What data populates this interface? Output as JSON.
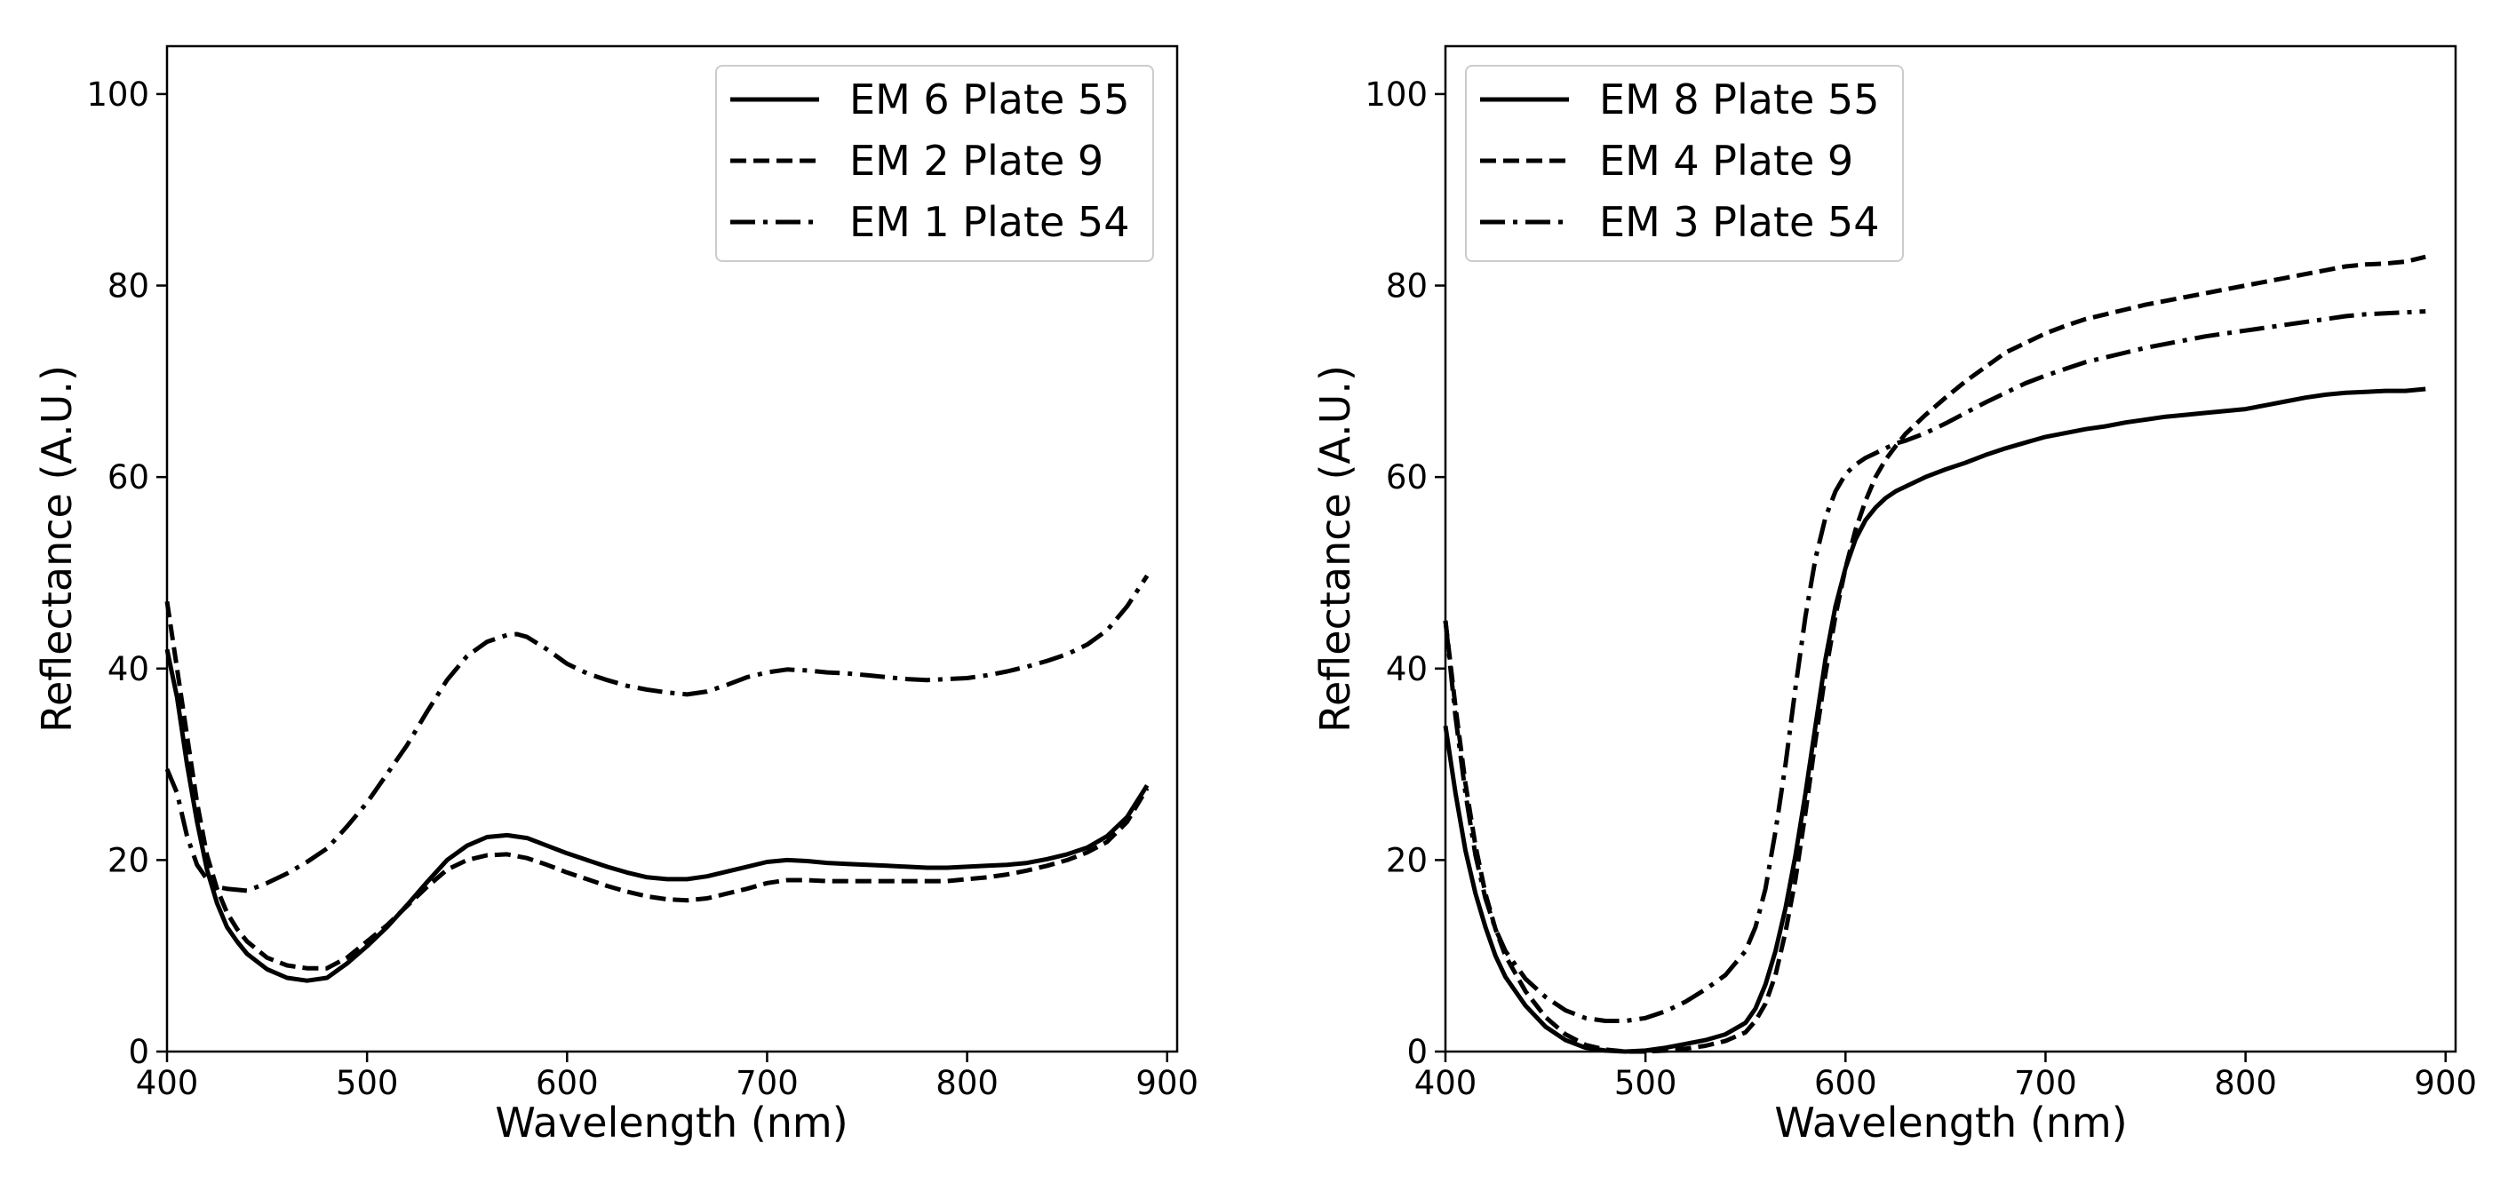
{
  "chart_data": [
    {
      "type": "line",
      "title": "",
      "xlabel": "Wavelength (nm)",
      "ylabel": "Reflectance (A.U.)",
      "xlim": [
        400,
        905
      ],
      "ylim": [
        0,
        105
      ],
      "xticks": [
        400,
        500,
        600,
        700,
        800,
        900
      ],
      "yticks": [
        0,
        20,
        40,
        60,
        80,
        100
      ],
      "grid": false,
      "legend_position": "top-right",
      "series": [
        {
          "name": "EM 6 Plate 55",
          "style": "solid",
          "x": [
            400,
            405,
            410,
            415,
            420,
            425,
            430,
            435,
            440,
            450,
            460,
            470,
            480,
            490,
            500,
            510,
            520,
            530,
            540,
            550,
            560,
            570,
            580,
            590,
            600,
            610,
            620,
            630,
            640,
            650,
            660,
            670,
            680,
            690,
            700,
            710,
            720,
            730,
            740,
            750,
            760,
            770,
            780,
            790,
            800,
            810,
            820,
            830,
            840,
            850,
            860,
            870,
            880,
            890
          ],
          "y": [
            42,
            37,
            30,
            24,
            19,
            15.5,
            13,
            11.5,
            10.2,
            8.6,
            7.7,
            7.4,
            7.7,
            9.2,
            11,
            13,
            15.3,
            17.7,
            20,
            21.5,
            22.4,
            22.6,
            22.3,
            21.5,
            20.7,
            20,
            19.3,
            18.7,
            18.2,
            18,
            18,
            18.3,
            18.8,
            19.3,
            19.8,
            20,
            19.9,
            19.7,
            19.6,
            19.5,
            19.4,
            19.3,
            19.2,
            19.2,
            19.3,
            19.4,
            19.5,
            19.7,
            20.1,
            20.6,
            21.3,
            22.5,
            24.5,
            27.8
          ]
        },
        {
          "name": "EM 2 Plate 9",
          "style": "dashed",
          "x": [
            400,
            405,
            410,
            415,
            420,
            425,
            430,
            435,
            440,
            450,
            460,
            470,
            480,
            490,
            500,
            510,
            520,
            530,
            540,
            550,
            560,
            570,
            580,
            590,
            600,
            610,
            620,
            630,
            640,
            650,
            660,
            670,
            680,
            690,
            700,
            710,
            720,
            730,
            740,
            750,
            760,
            770,
            780,
            790,
            800,
            810,
            820,
            830,
            840,
            850,
            860,
            870,
            880,
            890
          ],
          "y": [
            47,
            40,
            33,
            26,
            20.5,
            17,
            14.5,
            12.8,
            11.5,
            9.8,
            9,
            8.7,
            8.7,
            9.8,
            11.5,
            13.2,
            15.2,
            17.2,
            19,
            20,
            20.5,
            20.6,
            20.2,
            19.5,
            18.7,
            18,
            17.3,
            16.7,
            16.2,
            15.9,
            15.8,
            16,
            16.5,
            17,
            17.6,
            17.9,
            17.9,
            17.8,
            17.8,
            17.8,
            17.8,
            17.8,
            17.8,
            17.8,
            18,
            18.2,
            18.5,
            18.9,
            19.4,
            20,
            20.8,
            21.9,
            24,
            27.5
          ]
        },
        {
          "name": "EM 1 Plate 54",
          "style": "dashdot",
          "x": [
            400,
            405,
            410,
            415,
            420,
            425,
            430,
            440,
            450,
            460,
            470,
            480,
            490,
            500,
            510,
            520,
            530,
            540,
            550,
            560,
            570,
            575,
            580,
            590,
            600,
            610,
            620,
            630,
            640,
            650,
            660,
            670,
            680,
            690,
            700,
            710,
            720,
            730,
            740,
            750,
            760,
            770,
            780,
            790,
            800,
            810,
            820,
            830,
            840,
            850,
            860,
            870,
            880,
            890
          ],
          "y": [
            29.5,
            27,
            22.5,
            19.5,
            18,
            17.2,
            17,
            16.8,
            17.6,
            18.6,
            19.8,
            21.2,
            23.5,
            26,
            29,
            32,
            35.5,
            38.8,
            41.3,
            42.8,
            43.5,
            43.6,
            43.3,
            42,
            40.5,
            39.5,
            38.8,
            38.2,
            37.8,
            37.5,
            37.3,
            37.6,
            38.3,
            39.1,
            39.6,
            39.9,
            39.8,
            39.6,
            39.5,
            39.3,
            39.1,
            38.9,
            38.8,
            38.9,
            39,
            39.3,
            39.7,
            40.2,
            40.8,
            41.5,
            42.5,
            44,
            46.5,
            49.7
          ]
        }
      ]
    },
    {
      "type": "line",
      "title": "",
      "xlabel": "Wavelength (nm)",
      "ylabel": "Reflectance (A.U.)",
      "xlim": [
        400,
        905
      ],
      "ylim": [
        0,
        105
      ],
      "xticks": [
        400,
        500,
        600,
        700,
        800,
        900
      ],
      "yticks": [
        0,
        20,
        40,
        60,
        80,
        100
      ],
      "grid": false,
      "legend_position": "top-left",
      "series": [
        {
          "name": "EM 8 Plate 55",
          "style": "solid",
          "x": [
            400,
            405,
            410,
            415,
            420,
            425,
            430,
            440,
            450,
            460,
            470,
            480,
            490,
            500,
            510,
            520,
            530,
            540,
            550,
            555,
            560,
            565,
            570,
            575,
            580,
            585,
            590,
            595,
            600,
            605,
            610,
            615,
            620,
            625,
            630,
            640,
            650,
            660,
            670,
            680,
            690,
            700,
            710,
            720,
            730,
            740,
            750,
            760,
            770,
            780,
            790,
            800,
            810,
            820,
            830,
            840,
            850,
            860,
            870,
            880,
            890
          ],
          "y": [
            34,
            27,
            21,
            16.5,
            13,
            10,
            7.8,
            4.8,
            2.6,
            1.2,
            0.4,
            0.1,
            0,
            0.1,
            0.4,
            0.8,
            1.2,
            1.8,
            3,
            4.5,
            7,
            10.5,
            15,
            20.5,
            27,
            34,
            41,
            46.5,
            50.5,
            53.5,
            55.5,
            56.8,
            57.8,
            58.5,
            59,
            60,
            60.8,
            61.5,
            62.3,
            63,
            63.6,
            64.2,
            64.6,
            65,
            65.3,
            65.7,
            66,
            66.3,
            66.5,
            66.7,
            66.9,
            67.1,
            67.5,
            67.9,
            68.3,
            68.6,
            68.8,
            68.9,
            69,
            69,
            69.2
          ]
        },
        {
          "name": "EM 4 Plate 9",
          "style": "dashed",
          "x": [
            400,
            405,
            410,
            415,
            420,
            425,
            430,
            440,
            450,
            460,
            470,
            480,
            490,
            500,
            510,
            520,
            530,
            540,
            550,
            555,
            560,
            565,
            570,
            575,
            580,
            585,
            590,
            595,
            600,
            605,
            610,
            615,
            620,
            625,
            630,
            640,
            650,
            660,
            670,
            680,
            690,
            700,
            710,
            720,
            730,
            740,
            750,
            760,
            770,
            780,
            790,
            800,
            810,
            820,
            830,
            840,
            850,
            860,
            870,
            880,
            890
          ],
          "y": [
            45,
            36,
            28,
            21.5,
            16.5,
            12.8,
            10,
            6.3,
            3.6,
            1.8,
            0.7,
            0.2,
            0,
            0,
            0.1,
            0.3,
            0.6,
            1.1,
            2,
            3.2,
            5,
            8,
            12.5,
            18,
            25,
            32.5,
            39.5,
            45.5,
            50.5,
            54.5,
            57.5,
            60,
            61.8,
            63.2,
            64.5,
            66.5,
            68.3,
            70,
            71.5,
            73,
            74,
            75,
            75.8,
            76.5,
            77,
            77.5,
            78,
            78.4,
            78.8,
            79.2,
            79.6,
            80,
            80.4,
            80.8,
            81.2,
            81.6,
            82,
            82.2,
            82.3,
            82.5,
            83
          ]
        },
        {
          "name": "EM 3 Plate 54",
          "style": "dashdot",
          "x": [
            400,
            405,
            410,
            415,
            420,
            425,
            430,
            440,
            450,
            460,
            470,
            480,
            490,
            500,
            510,
            520,
            530,
            540,
            550,
            555,
            560,
            565,
            570,
            575,
            580,
            585,
            590,
            595,
            600,
            605,
            610,
            615,
            620,
            625,
            630,
            640,
            650,
            660,
            670,
            680,
            690,
            700,
            710,
            720,
            730,
            740,
            750,
            760,
            770,
            780,
            790,
            800,
            810,
            820,
            830,
            840,
            850,
            860,
            870,
            880,
            890
          ],
          "y": [
            45,
            35,
            27,
            20.5,
            16,
            12.8,
            10.5,
            7.6,
            5.7,
            4.3,
            3.5,
            3.2,
            3.2,
            3.5,
            4.2,
            5.2,
            6.5,
            8,
            10.5,
            13,
            17,
            23,
            30,
            38,
            45.5,
            51.5,
            55.8,
            58.5,
            60.3,
            61.3,
            62,
            62.5,
            63,
            63.5,
            63.8,
            64.6,
            65.6,
            66.7,
            67.8,
            68.8,
            69.8,
            70.6,
            71.3,
            72,
            72.5,
            73,
            73.5,
            73.9,
            74.3,
            74.7,
            75,
            75.3,
            75.6,
            75.9,
            76.2,
            76.5,
            76.8,
            77,
            77.1,
            77.2,
            77.3
          ]
        }
      ]
    }
  ]
}
